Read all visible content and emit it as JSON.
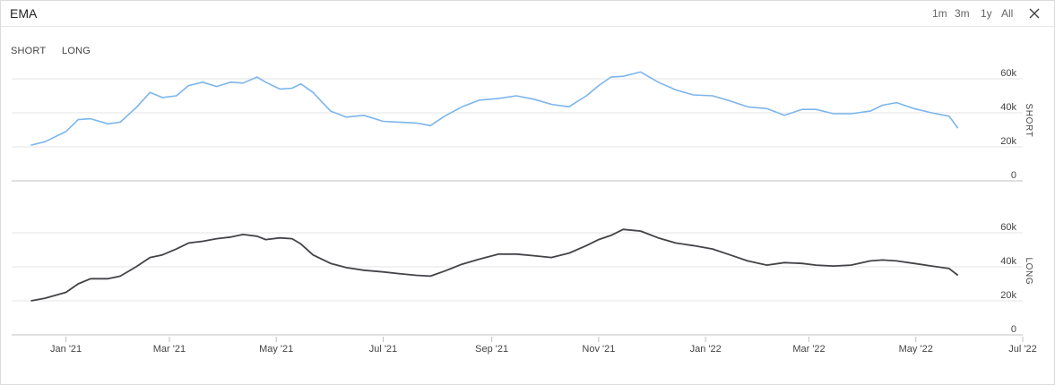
{
  "header": {
    "title": "EMA",
    "ranges": [
      "1m",
      "3m",
      "1y",
      "All"
    ]
  },
  "legend": {
    "items": [
      "SHORT",
      "LONG"
    ]
  },
  "colors": {
    "short": "#7cb5ec",
    "long": "#434348",
    "grid": "#e6e6e6",
    "axis": "#c0c0c0"
  },
  "chart_data": [
    {
      "type": "line",
      "title": "",
      "series_label": "SHORT",
      "color": "#7cb5ec",
      "ylim": [
        0,
        70000
      ],
      "yticks": [
        0,
        20000,
        40000,
        60000
      ],
      "ytick_labels": [
        "0",
        "20k",
        "40k",
        "60k"
      ],
      "x": [
        "2020-12-12",
        "2020-12-20",
        "2021-01-01",
        "2021-01-08",
        "2021-01-15",
        "2021-01-25",
        "2021-02-01",
        "2021-02-10",
        "2021-02-18",
        "2021-02-25",
        "2021-03-05",
        "2021-03-12",
        "2021-03-20",
        "2021-03-28",
        "2021-04-05",
        "2021-04-12",
        "2021-04-20",
        "2021-04-25",
        "2021-05-03",
        "2021-05-10",
        "2021-05-15",
        "2021-05-22",
        "2021-06-01",
        "2021-06-10",
        "2021-06-20",
        "2021-07-01",
        "2021-07-10",
        "2021-07-20",
        "2021-07-28",
        "2021-08-05",
        "2021-08-15",
        "2021-08-25",
        "2021-09-05",
        "2021-09-15",
        "2021-09-25",
        "2021-10-05",
        "2021-10-15",
        "2021-10-25",
        "2021-11-01",
        "2021-11-08",
        "2021-11-15",
        "2021-11-25",
        "2021-12-05",
        "2021-12-15",
        "2021-12-25",
        "2022-01-05",
        "2022-01-15",
        "2022-01-25",
        "2022-02-05",
        "2022-02-15",
        "2022-02-25",
        "2022-03-05",
        "2022-03-15",
        "2022-03-25",
        "2022-04-05",
        "2022-04-12",
        "2022-04-20",
        "2022-04-30",
        "2022-05-10",
        "2022-05-20",
        "2022-05-25"
      ],
      "y": [
        21000,
        23000,
        29000,
        36000,
        36500,
        33500,
        34500,
        43000,
        52000,
        49000,
        50000,
        56000,
        58000,
        55500,
        58000,
        57500,
        61000,
        58000,
        54000,
        54500,
        57000,
        52000,
        41000,
        37500,
        38500,
        35000,
        34500,
        34000,
        32500,
        38000,
        43500,
        47500,
        48500,
        50000,
        48000,
        45000,
        43500,
        50000,
        56000,
        61000,
        61500,
        64000,
        58000,
        53500,
        50500,
        50000,
        47000,
        43500,
        42500,
        38500,
        42000,
        42000,
        39500,
        39500,
        41000,
        44500,
        46000,
        42500,
        40000,
        38000,
        31000
      ]
    },
    {
      "type": "line",
      "title": "",
      "series_label": "LONG",
      "color": "#434348",
      "ylim": [
        0,
        70000
      ],
      "yticks": [
        0,
        20000,
        40000,
        60000
      ],
      "ytick_labels": [
        "0",
        "20k",
        "40k",
        "60k"
      ],
      "x": [
        "2020-12-12",
        "2020-12-20",
        "2021-01-01",
        "2021-01-08",
        "2021-01-15",
        "2021-01-25",
        "2021-02-01",
        "2021-02-10",
        "2021-02-18",
        "2021-02-25",
        "2021-03-05",
        "2021-03-12",
        "2021-03-20",
        "2021-03-28",
        "2021-04-05",
        "2021-04-12",
        "2021-04-20",
        "2021-04-25",
        "2021-05-03",
        "2021-05-10",
        "2021-05-15",
        "2021-05-22",
        "2021-06-01",
        "2021-06-10",
        "2021-06-20",
        "2021-07-01",
        "2021-07-10",
        "2021-07-20",
        "2021-07-28",
        "2021-08-05",
        "2021-08-15",
        "2021-08-25",
        "2021-09-05",
        "2021-09-15",
        "2021-09-25",
        "2021-10-05",
        "2021-10-15",
        "2021-10-25",
        "2021-11-01",
        "2021-11-08",
        "2021-11-15",
        "2021-11-25",
        "2021-12-05",
        "2021-12-15",
        "2021-12-25",
        "2022-01-05",
        "2022-01-15",
        "2022-01-25",
        "2022-02-05",
        "2022-02-15",
        "2022-02-25",
        "2022-03-05",
        "2022-03-15",
        "2022-03-25",
        "2022-04-05",
        "2022-04-12",
        "2022-04-20",
        "2022-04-30",
        "2022-05-10",
        "2022-05-20",
        "2022-05-25"
      ],
      "y": [
        20000,
        21500,
        25000,
        30000,
        33000,
        33000,
        34500,
        40000,
        45500,
        47000,
        50500,
        54000,
        55000,
        56500,
        57500,
        59000,
        58000,
        56000,
        57000,
        56500,
        53500,
        47000,
        42000,
        39500,
        38000,
        37000,
        36000,
        35000,
        34500,
        37500,
        41500,
        44500,
        47500,
        47500,
        46500,
        45500,
        48000,
        52500,
        56000,
        58500,
        62000,
        61000,
        57000,
        54000,
        52500,
        50500,
        47000,
        43500,
        41000,
        42500,
        42000,
        41000,
        40500,
        41000,
        43500,
        44000,
        43500,
        42000,
        40500,
        39000,
        35000
      ]
    }
  ],
  "xaxis": {
    "range": [
      "2020-12-01",
      "2022-07-01"
    ],
    "ticks": [
      "2021-01-01",
      "2021-03-01",
      "2021-05-01",
      "2021-07-01",
      "2021-09-01",
      "2021-11-01",
      "2022-01-01",
      "2022-03-01",
      "2022-05-01",
      "2022-07-01"
    ],
    "tick_labels": [
      "Jan '21",
      "Mar '21",
      "May '21",
      "Jul '21",
      "Sep '21",
      "Nov '21",
      "Jan '22",
      "Mar '22",
      "May '22",
      "Jul '22"
    ]
  },
  "grid": true
}
